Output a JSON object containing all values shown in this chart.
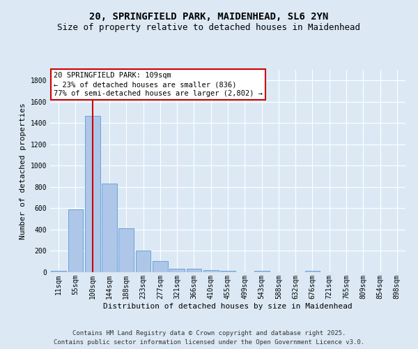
{
  "title1": "20, SPRINGFIELD PARK, MAIDENHEAD, SL6 2YN",
  "title2": "Size of property relative to detached houses in Maidenhead",
  "xlabel": "Distribution of detached houses by size in Maidenhead",
  "ylabel": "Number of detached properties",
  "categories": [
    "11sqm",
    "55sqm",
    "100sqm",
    "144sqm",
    "188sqm",
    "233sqm",
    "277sqm",
    "321sqm",
    "366sqm",
    "410sqm",
    "455sqm",
    "499sqm",
    "543sqm",
    "588sqm",
    "632sqm",
    "676sqm",
    "721sqm",
    "765sqm",
    "809sqm",
    "854sqm",
    "898sqm"
  ],
  "values": [
    15,
    590,
    1470,
    830,
    415,
    200,
    105,
    35,
    30,
    18,
    10,
    2,
    10,
    2,
    2,
    10,
    2,
    2,
    2,
    2,
    2
  ],
  "bar_color": "#aec6e8",
  "bar_edge_color": "#5b9bd5",
  "vline_x": 2,
  "vline_color": "#cc0000",
  "annotation_lines": [
    "20 SPRINGFIELD PARK: 109sqm",
    "← 23% of detached houses are smaller (836)",
    "77% of semi-detached houses are larger (2,802) →"
  ],
  "annotation_box_color": "#ffffff",
  "annotation_box_edge_color": "#cc0000",
  "bg_color": "#dce9f5",
  "grid_color": "#ffffff",
  "ylim": [
    0,
    1900
  ],
  "yticks": [
    0,
    200,
    400,
    600,
    800,
    1000,
    1200,
    1400,
    1600,
    1800
  ],
  "footnote1": "Contains HM Land Registry data © Crown copyright and database right 2025.",
  "footnote2": "Contains public sector information licensed under the Open Government Licence v3.0.",
  "title1_fontsize": 10,
  "title2_fontsize": 9,
  "xlabel_fontsize": 8,
  "ylabel_fontsize": 8,
  "tick_fontsize": 7,
  "annot_fontsize": 7.5,
  "footnote_fontsize": 6.5
}
